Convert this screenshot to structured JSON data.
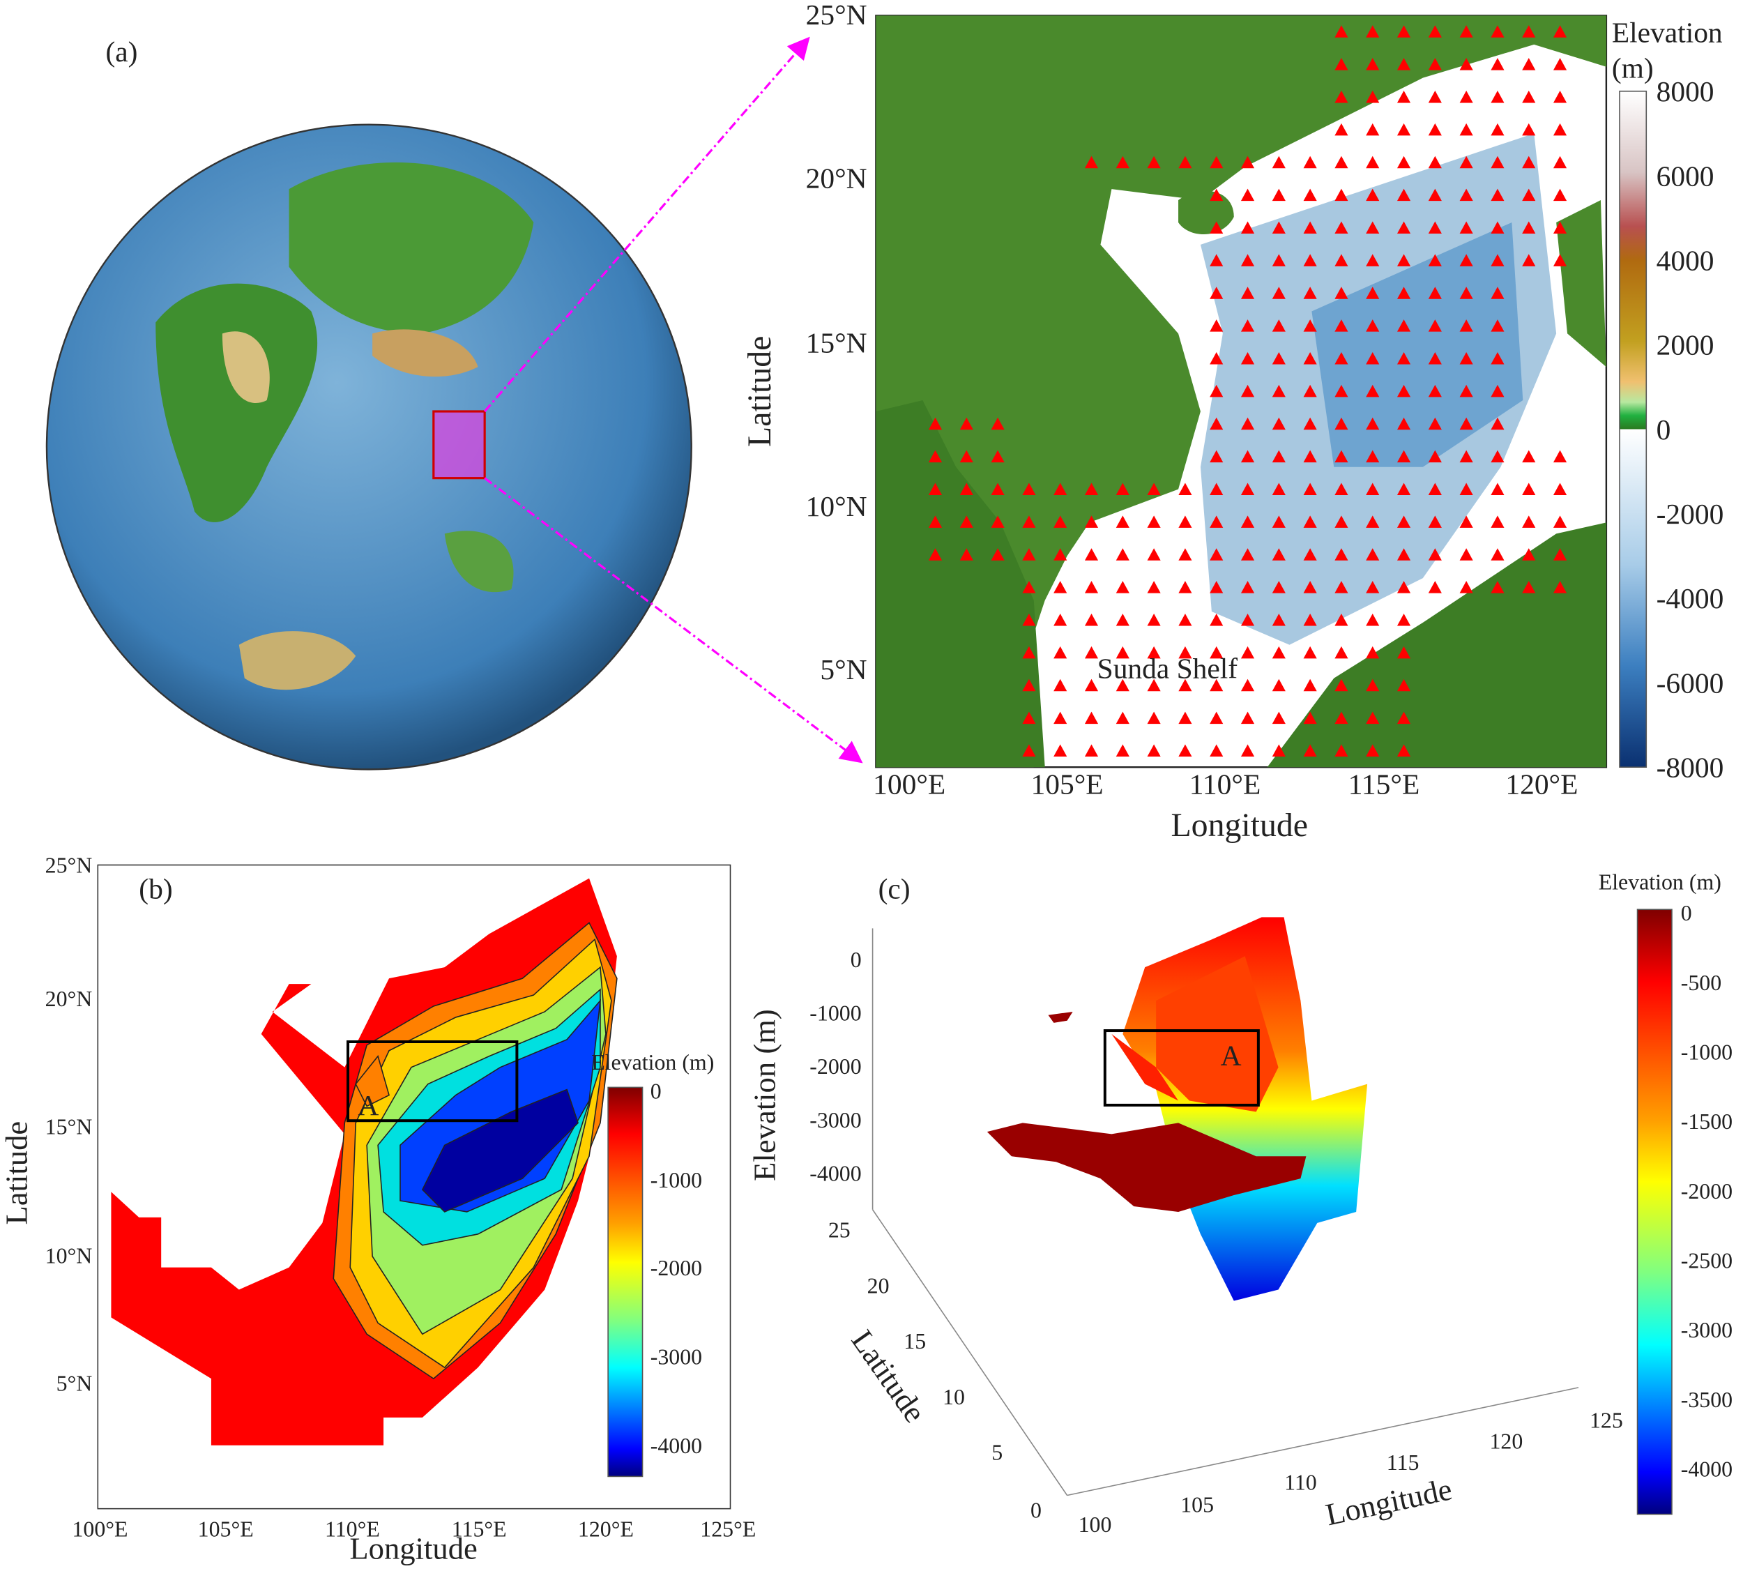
{
  "panel_a": {
    "label": "(a)",
    "map": {
      "lat_ticks": [
        "25°N",
        "20°N",
        "15°N",
        "10°N",
        "5°N"
      ],
      "lon_ticks": [
        "100°E",
        "105°E",
        "110°E",
        "115°E",
        "120°E"
      ],
      "xlabel": "Longitude",
      "ylabel": "Latitude",
      "annotation": "Sunda Shelf",
      "colorbar": {
        "title_line1": "Elevation",
        "title_line2": "(m)",
        "ticks": [
          "8000",
          "6000",
          "4000",
          "2000",
          "0",
          "-2000",
          "-4000",
          "-6000",
          "-8000"
        ]
      },
      "marker_color": "#ff0000",
      "arrow_color": "#ff00ff"
    }
  },
  "panel_b": {
    "label": "(b)",
    "box_label": "A",
    "lat_ticks": [
      "25°N",
      "20°N",
      "15°N",
      "10°N",
      "5°N"
    ],
    "lon_ticks": [
      "100°E",
      "105°E",
      "110°E",
      "115°E",
      "120°E",
      "125°E"
    ],
    "xlabel": "Longitude",
    "ylabel": "Latitude",
    "colorbar": {
      "title": "Elevation (m)",
      "ticks": [
        "0",
        "-1000",
        "-2000",
        "-3000",
        "-4000"
      ]
    }
  },
  "panel_c": {
    "label": "(c)",
    "box_label": "A",
    "z_ticks": [
      "0",
      "-1000",
      "-2000",
      "-3000",
      "-4000"
    ],
    "lat_ticks": [
      "25",
      "20",
      "15",
      "10",
      "5",
      "0"
    ],
    "lon_ticks": [
      "100",
      "105",
      "110",
      "115",
      "120",
      "125"
    ],
    "zlabel": "Elevation (m)",
    "ylabel": "Latitude",
    "xlabel": "Longitude",
    "colorbar": {
      "title": "Elevation (m)",
      "ticks": [
        "0",
        "-500",
        "-1000",
        "-1500",
        "-2000",
        "-2500",
        "-3000",
        "-3500",
        "-4000"
      ]
    }
  }
}
